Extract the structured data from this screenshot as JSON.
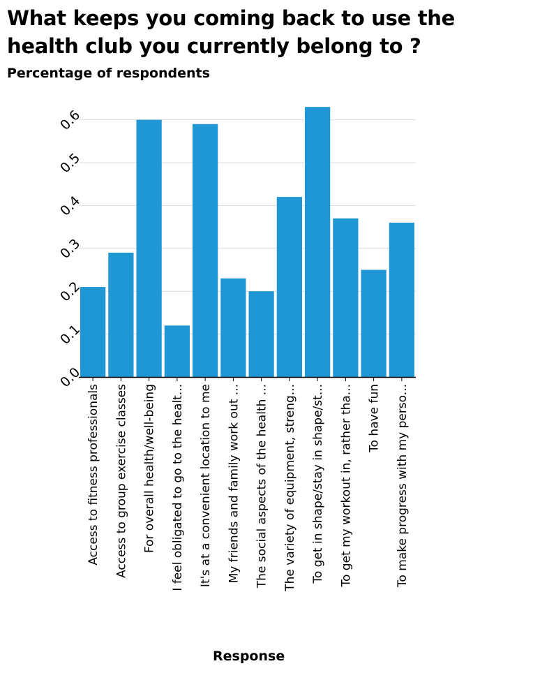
{
  "chart_data": {
    "type": "bar",
    "title": "What keeps you coming back to use the health club you currently belong to ?",
    "ylabel": "Percentage of respondents",
    "xlabel": "Response",
    "ylim": [
      0,
      0.65
    ],
    "yticks": [
      "0.0",
      "0.1",
      "0.2",
      "0.3",
      "0.4",
      "0.5",
      "0.6"
    ],
    "grid": "horizontal",
    "bar_color": "#1f97d4",
    "categories": [
      "Access to fitness professionals",
      "Access to group exercise classes",
      "For overall health/well-being",
      "I feel obligated to go to the healt...",
      "It's at a convenient location to me",
      "My friends and family work out ...",
      "The social aspects of the health ...",
      "The variety of equipment, streng...",
      "To get in shape/stay in shape/st...",
      "To get my workout in, rather tha...",
      "To have fun",
      "To make progress with my perso..."
    ],
    "values": [
      0.21,
      0.29,
      0.6,
      0.12,
      0.59,
      0.23,
      0.2,
      0.42,
      0.63,
      0.37,
      0.25,
      0.36
    ]
  }
}
